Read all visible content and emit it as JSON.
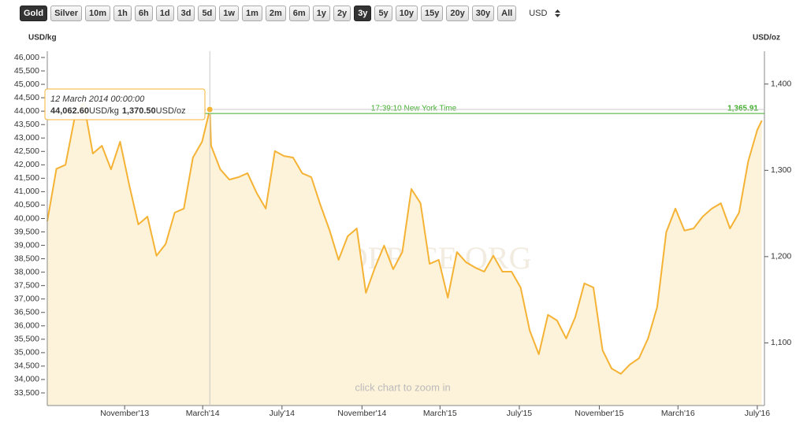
{
  "toolbar": {
    "buttons": [
      {
        "label": "Gold",
        "active": true
      },
      {
        "label": "Silver",
        "active": false
      },
      {
        "label": "10m",
        "active": false
      },
      {
        "label": "1h",
        "active": false
      },
      {
        "label": "6h",
        "active": false
      },
      {
        "label": "1d",
        "active": false
      },
      {
        "label": "3d",
        "active": false
      },
      {
        "label": "5d",
        "active": false
      },
      {
        "label": "1w",
        "active": false
      },
      {
        "label": "1m",
        "active": false
      },
      {
        "label": "2m",
        "active": false
      },
      {
        "label": "6m",
        "active": false
      },
      {
        "label": "1y",
        "active": false
      },
      {
        "label": "2y",
        "active": false
      },
      {
        "label": "3y",
        "active": true
      },
      {
        "label": "5y",
        "active": false
      },
      {
        "label": "10y",
        "active": false
      },
      {
        "label": "15y",
        "active": false
      },
      {
        "label": "20y",
        "active": false
      },
      {
        "label": "30y",
        "active": false
      },
      {
        "label": "All",
        "active": false
      }
    ],
    "currency": "USD"
  },
  "chart_data": {
    "type": "line",
    "y_label": "USD/kg",
    "y2_label": "USD/oz",
    "watermark": "GOLDPRICE.ORG",
    "note": "click chart to zoom in",
    "color": "#f5b335",
    "fill_color": "#fdf2da",
    "x": [
      "2013-07-05",
      "2013-07-19",
      "2013-08-02",
      "2013-08-16",
      "2013-08-30",
      "2013-09-13",
      "2013-09-27",
      "2013-10-11",
      "2013-10-25",
      "2013-11-08",
      "2013-11-22",
      "2013-12-06",
      "2013-12-20",
      "2014-01-03",
      "2014-01-17",
      "2014-01-31",
      "2014-02-14",
      "2014-02-28",
      "2014-03-12",
      "2014-03-14",
      "2014-03-28",
      "2014-04-11",
      "2014-04-25",
      "2014-05-09",
      "2014-05-23",
      "2014-06-06",
      "2014-06-20",
      "2014-07-04",
      "2014-07-18",
      "2014-08-01",
      "2014-08-15",
      "2014-08-29",
      "2014-09-12",
      "2014-09-26",
      "2014-10-10",
      "2014-10-24",
      "2014-11-07",
      "2014-11-21",
      "2014-12-05",
      "2014-12-19",
      "2015-01-02",
      "2015-01-16",
      "2015-01-30",
      "2015-02-13",
      "2015-02-27",
      "2015-03-13",
      "2015-03-27",
      "2015-04-10",
      "2015-04-24",
      "2015-05-08",
      "2015-05-22",
      "2015-06-05",
      "2015-06-19",
      "2015-07-03",
      "2015-07-17",
      "2015-07-31",
      "2015-08-14",
      "2015-08-28",
      "2015-09-11",
      "2015-09-25",
      "2015-10-09",
      "2015-10-23",
      "2015-11-06",
      "2015-11-20",
      "2015-12-04",
      "2015-12-18",
      "2016-01-01",
      "2016-01-15",
      "2016-01-29",
      "2016-02-12",
      "2016-02-26",
      "2016-03-11",
      "2016-03-25",
      "2016-04-08",
      "2016-04-22",
      "2016-05-06",
      "2016-05-20",
      "2016-06-03",
      "2016-06-17",
      "2016-07-01",
      "2016-07-08"
    ],
    "values": [
      39900,
      41850,
      42000,
      43750,
      44330,
      42420,
      42710,
      41830,
      42860,
      41250,
      39780,
      40070,
      38610,
      39050,
      40220,
      40370,
      42270,
      42860,
      44062.6,
      42710,
      41830,
      41450,
      41540,
      41690,
      40950,
      40370,
      42510,
      42330,
      42270,
      41690,
      41540,
      40510,
      39570,
      38460,
      39340,
      39630,
      37230,
      38170,
      38990,
      38110,
      38750,
      41100,
      40570,
      38310,
      38460,
      37050,
      38750,
      38370,
      38170,
      38020,
      38610,
      38020,
      38020,
      37430,
      35820,
      34940,
      36410,
      36200,
      35530,
      36320,
      37580,
      37430,
      35090,
      34410,
      34210,
      34560,
      34790,
      35530,
      36700,
      39490,
      40370,
      39550,
      39630,
      40070,
      40370,
      40570,
      39630,
      40220,
      42130,
      43300,
      43650
    ],
    "xlim": [
      "2013-07-05",
      "2016-07-12"
    ],
    "xticks": [
      {
        "value": "2013-11-01",
        "label": "November'13"
      },
      {
        "value": "2014-03-01",
        "label": "March'14"
      },
      {
        "value": "2014-07-01",
        "label": "July'14"
      },
      {
        "value": "2014-11-01",
        "label": "November'14"
      },
      {
        "value": "2015-03-01",
        "label": "March'15"
      },
      {
        "value": "2015-07-01",
        "label": "July'15"
      },
      {
        "value": "2015-11-01",
        "label": "November'15"
      },
      {
        "value": "2016-03-01",
        "label": "March'16"
      },
      {
        "value": "2016-07-01",
        "label": "July'16"
      }
    ],
    "ylim": [
      33030,
      46235
    ],
    "yticks": [
      {
        "value": 33500,
        "label": "33,500"
      },
      {
        "value": 34000,
        "label": "34,000"
      },
      {
        "value": 34500,
        "label": "34,500"
      },
      {
        "value": 35000,
        "label": "35,000"
      },
      {
        "value": 35500,
        "label": "35,500"
      },
      {
        "value": 36000,
        "label": "36,000"
      },
      {
        "value": 36500,
        "label": "36,500"
      },
      {
        "value": 37000,
        "label": "37,000"
      },
      {
        "value": 37500,
        "label": "37,500"
      },
      {
        "value": 38000,
        "label": "38,000"
      },
      {
        "value": 38500,
        "label": "38,500"
      },
      {
        "value": 39000,
        "label": "39,000"
      },
      {
        "value": 39500,
        "label": "39,500"
      },
      {
        "value": 40000,
        "label": "40,000"
      },
      {
        "value": 40500,
        "label": "40,500"
      },
      {
        "value": 41000,
        "label": "41,000"
      },
      {
        "value": 41500,
        "label": "41,500"
      },
      {
        "value": 42000,
        "label": "42,000"
      },
      {
        "value": 42500,
        "label": "42,500"
      },
      {
        "value": 43000,
        "label": "43,000"
      },
      {
        "value": 43500,
        "label": "43,500"
      },
      {
        "value": 44000,
        "label": "44,000"
      },
      {
        "value": 44500,
        "label": "44,500"
      },
      {
        "value": 45000,
        "label": "45,000"
      },
      {
        "value": 45500,
        "label": "45,500"
      },
      {
        "value": 46000,
        "label": "46,000"
      }
    ],
    "y2lim": [
      1027.4,
      1438.1
    ],
    "y2ticks": [
      {
        "value": 1100,
        "label": "1,100"
      },
      {
        "value": 1200,
        "label": "1,200"
      },
      {
        "value": 1300,
        "label": "1,300"
      },
      {
        "value": 1400,
        "label": "1,400"
      }
    ],
    "current_price": {
      "value": 1365.91,
      "label": "1,365.91",
      "time": "17:39:10 New York Time",
      "color": "#3fae2a",
      "axis": "y2"
    },
    "tooltip": {
      "title": "12 March 2014 00:00:00",
      "value": {
        "value": 44062.6,
        "label": "44,062.60"
      },
      "unit": "USD/kg",
      "value2": {
        "value": 1370.5,
        "label": "1,370.50"
      },
      "unit2": "USD/oz"
    }
  }
}
